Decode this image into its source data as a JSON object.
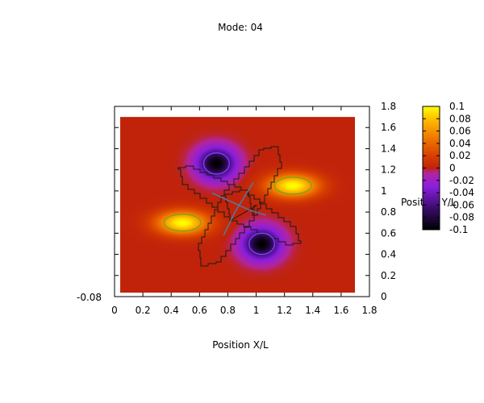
{
  "chart_data": {
    "type": "heatmap",
    "title": "Mode: 04",
    "xlabel": "Position X/L",
    "ylabel": "Position Y/L",
    "xlim": [
      0,
      1.8
    ],
    "ylim": [
      0,
      1.8
    ],
    "x_ticks": [
      "0",
      "0.2",
      "0.4",
      "0.6",
      "0.8",
      "1",
      "1.2",
      "1.4",
      "1.6",
      "1.8"
    ],
    "y_ticks": [
      "0",
      "0.2",
      "0.4",
      "0.6",
      "0.8",
      "1",
      "1.2",
      "1.4",
      "1.6",
      "1.8"
    ],
    "colorbar_range": [
      -0.1,
      0.1
    ],
    "colorbar_ticks": [
      "0.1",
      "0.08",
      "0.06",
      "0.04",
      "0.02",
      "0",
      "-0.02",
      "-0.04",
      "-0.06",
      "-0.08",
      "-0.1"
    ],
    "left_overlap_label": "-0.08",
    "field_extent": {
      "x": [
        0.04,
        1.7
      ],
      "y": [
        0.04,
        1.7
      ]
    },
    "background_value": 0.0,
    "peaks": [
      {
        "x": 1.26,
        "y": 1.05,
        "amplitude": 0.1,
        "sx": 0.13,
        "sy": 0.08
      },
      {
        "x": 0.48,
        "y": 0.7,
        "amplitude": 0.1,
        "sx": 0.13,
        "sy": 0.08
      },
      {
        "x": 0.72,
        "y": 1.26,
        "amplitude": -0.1,
        "sx": 0.09,
        "sy": 0.1
      },
      {
        "x": 1.04,
        "y": 0.5,
        "amplitude": -0.1,
        "sx": 0.09,
        "sy": 0.1
      }
    ],
    "outline_color": "#1a1a1a",
    "contour_color_positive": "#6fa51e",
    "contour_color_negative": "#7a44ff",
    "nodal_line_color": "#4f7fa8"
  }
}
